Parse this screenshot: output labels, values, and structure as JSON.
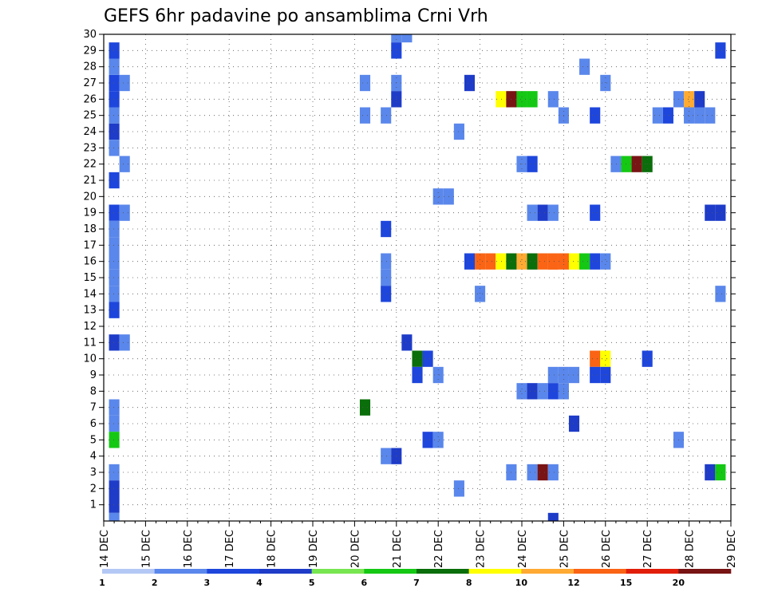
{
  "chart_data": {
    "type": "heatmap",
    "title": "GEFS 6hr padavine po ansamblima Crni Vrh",
    "x_tick_labels": [
      "14 DEC",
      "15 DEC",
      "16 DEC",
      "17 DEC",
      "18 DEC",
      "19 DEC",
      "20 DEC",
      "21 DEC",
      "22 DEC",
      "23 DEC",
      "24 DEC",
      "25 DEC",
      "26 DEC",
      "27 DEC",
      "28 DEC",
      "29 DEC"
    ],
    "y_tick_labels": [
      "1",
      "2",
      "3",
      "4",
      "5",
      "6",
      "7",
      "8",
      "9",
      "10",
      "11",
      "12",
      "13",
      "14",
      "15",
      "16",
      "17",
      "18",
      "19",
      "20",
      "21",
      "22",
      "23",
      "24",
      "25",
      "26",
      "27",
      "28",
      "29",
      "30"
    ],
    "xlim": [
      0,
      60
    ],
    "ylim": [
      0,
      30
    ],
    "grid": true,
    "colorbar": {
      "labels": [
        "1",
        "2",
        "3",
        "4",
        "5",
        "6",
        "7",
        "8",
        "10",
        "12",
        "15",
        "20"
      ],
      "colors": [
        "#b4c8f5",
        "#5a87eb",
        "#1e46dc",
        "#1e3cc8",
        "#78e650",
        "#14c814",
        "#0a6e0a",
        "#ffff00",
        "#ffaa32",
        "#fa6414",
        "#e11e0a",
        "#781414"
      ]
    },
    "cells": [
      [
        2,
        29,
        2
      ],
      [
        2,
        27,
        2
      ],
      [
        2,
        26,
        2
      ],
      [
        2,
        28,
        1
      ],
      [
        2,
        25,
        1
      ],
      [
        2,
        24,
        3
      ],
      [
        2,
        23,
        1
      ],
      [
        2,
        21,
        2
      ],
      [
        2,
        19,
        2
      ],
      [
        2,
        18,
        1
      ],
      [
        2,
        17,
        1
      ],
      [
        2,
        16,
        1
      ],
      [
        2,
        15,
        1
      ],
      [
        2,
        14,
        1
      ],
      [
        2,
        13,
        2
      ],
      [
        2,
        11,
        3
      ],
      [
        2,
        7,
        1
      ],
      [
        2,
        6,
        1
      ],
      [
        2,
        5,
        5
      ],
      [
        2,
        3,
        1
      ],
      [
        2,
        2,
        3
      ],
      [
        2,
        1,
        3
      ],
      [
        2,
        0,
        1
      ],
      [
        3,
        27,
        1
      ],
      [
        3,
        22,
        1
      ],
      [
        3,
        19,
        1
      ],
      [
        3,
        11,
        1
      ],
      [
        26,
        27,
        1
      ],
      [
        26,
        25,
        1
      ],
      [
        26,
        7,
        6
      ],
      [
        28,
        25,
        1
      ],
      [
        28,
        18,
        2
      ],
      [
        28,
        16,
        1
      ],
      [
        28,
        15,
        1
      ],
      [
        28,
        14,
        2
      ],
      [
        28,
        4,
        1
      ],
      [
        29,
        30,
        1
      ],
      [
        29,
        29,
        2
      ],
      [
        29,
        27,
        1
      ],
      [
        29,
        26,
        3
      ],
      [
        29,
        4,
        3
      ],
      [
        30,
        30,
        1
      ],
      [
        30,
        11,
        3
      ],
      [
        31,
        10,
        6
      ],
      [
        31,
        9,
        2
      ],
      [
        32,
        10,
        2
      ],
      [
        32,
        5,
        2
      ],
      [
        33,
        9,
        1
      ],
      [
        33,
        5,
        1
      ],
      [
        33,
        20,
        1
      ],
      [
        34,
        20,
        1
      ],
      [
        35,
        24,
        1
      ],
      [
        35,
        2,
        1
      ],
      [
        36,
        27,
        3
      ],
      [
        36,
        16,
        2
      ],
      [
        37,
        16,
        9
      ],
      [
        38,
        16,
        9
      ],
      [
        37,
        14,
        1
      ],
      [
        39,
        16,
        7
      ],
      [
        40,
        16,
        6
      ],
      [
        39,
        26,
        7
      ],
      [
        40,
        26,
        11
      ],
      [
        41,
        26,
        5
      ],
      [
        42,
        26,
        5
      ],
      [
        41,
        16,
        8
      ],
      [
        42,
        16,
        6
      ],
      [
        40,
        3,
        1
      ],
      [
        41,
        22,
        1
      ],
      [
        41,
        8,
        1
      ],
      [
        42,
        22,
        2
      ],
      [
        42,
        19,
        1
      ],
      [
        42,
        8,
        3
      ],
      [
        42,
        3,
        1
      ],
      [
        43,
        19,
        3
      ],
      [
        43,
        16,
        9
      ],
      [
        43,
        8,
        1
      ],
      [
        43,
        3,
        11
      ],
      [
        44,
        16,
        9
      ],
      [
        44,
        16,
        9
      ],
      [
        44,
        26,
        1
      ],
      [
        44,
        19,
        1
      ],
      [
        44,
        9,
        1
      ],
      [
        44,
        8,
        2
      ],
      [
        44,
        3,
        1
      ],
      [
        44,
        0,
        3
      ],
      [
        45,
        16,
        9
      ],
      [
        45,
        25,
        1
      ],
      [
        45,
        9,
        1
      ],
      [
        45,
        8,
        1
      ],
      [
        46,
        16,
        7
      ],
      [
        46,
        9,
        1
      ],
      [
        46,
        6,
        3
      ],
      [
        47,
        28,
        1
      ],
      [
        47,
        16,
        5
      ],
      [
        48,
        25,
        2
      ],
      [
        48,
        19,
        2
      ],
      [
        48,
        16,
        2
      ],
      [
        48,
        10,
        9
      ],
      [
        48,
        9,
        2
      ],
      [
        49,
        27,
        1
      ],
      [
        49,
        16,
        1
      ],
      [
        49,
        10,
        7
      ],
      [
        49,
        9,
        2
      ],
      [
        50,
        22,
        1
      ],
      [
        51,
        22,
        5
      ],
      [
        52,
        22,
        11
      ],
      [
        53,
        22,
        6
      ],
      [
        53,
        10,
        2
      ],
      [
        54,
        25,
        1
      ],
      [
        55,
        25,
        2
      ],
      [
        56,
        26,
        1
      ],
      [
        56,
        5,
        1
      ],
      [
        57,
        26,
        8
      ],
      [
        57,
        25,
        1
      ],
      [
        58,
        26,
        3
      ],
      [
        58,
        25,
        1
      ],
      [
        59,
        25,
        1
      ],
      [
        59,
        19,
        3
      ],
      [
        59,
        3,
        3
      ],
      [
        60,
        29,
        2
      ],
      [
        60,
        19,
        3
      ],
      [
        60,
        14,
        1
      ],
      [
        60,
        3,
        5
      ]
    ]
  }
}
